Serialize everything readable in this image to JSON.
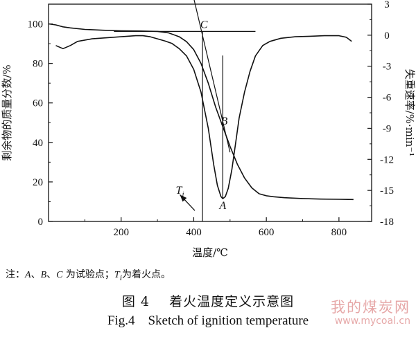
{
  "chart_data": {
    "type": "line",
    "xlabel": "温度/℃",
    "ylabel_left": "剩余物的质量分数/%",
    "ylabel_right": "失重速率/%·min⁻¹",
    "xlim": [
      0,
      890
    ],
    "ylim_left": [
      0,
      110
    ],
    "ylim_right": [
      -18,
      3
    ],
    "x_ticks": [
      200,
      400,
      600,
      800
    ],
    "y_ticks_left": [
      0,
      20,
      40,
      60,
      80,
      100
    ],
    "y_ticks_right": [
      3,
      0,
      -3,
      -6,
      -9,
      -12,
      -15,
      -18
    ],
    "series": [
      {
        "axis": "left",
        "points": [
          [
            0,
            100
          ],
          [
            20,
            99.5
          ],
          [
            40,
            98.5
          ],
          [
            60,
            98
          ],
          [
            100,
            97.2
          ],
          [
            150,
            96.8
          ],
          [
            200,
            96.5
          ],
          [
            250,
            96.4
          ],
          [
            300,
            96.2
          ],
          [
            330,
            95.5
          ],
          [
            360,
            93.5
          ],
          [
            380,
            91
          ],
          [
            400,
            87
          ],
          [
            420,
            80
          ],
          [
            440,
            70
          ],
          [
            460,
            58
          ],
          [
            480,
            48
          ],
          [
            500,
            38
          ],
          [
            520,
            29
          ],
          [
            540,
            22
          ],
          [
            560,
            17
          ],
          [
            580,
            14
          ],
          [
            600,
            13
          ],
          [
            620,
            12.5
          ],
          [
            650,
            12
          ],
          [
            700,
            11.6
          ],
          [
            750,
            11.3
          ],
          [
            800,
            11.2
          ],
          [
            840,
            11.1
          ]
        ]
      },
      {
        "axis": "right",
        "points": [
          [
            20,
            -1
          ],
          [
            40,
            -1.3
          ],
          [
            60,
            -1
          ],
          [
            80,
            -0.6
          ],
          [
            120,
            -0.35
          ],
          [
            160,
            -0.25
          ],
          [
            200,
            -0.15
          ],
          [
            240,
            -0.05
          ],
          [
            260,
            -0.05
          ],
          [
            280,
            -0.15
          ],
          [
            300,
            -0.35
          ],
          [
            320,
            -0.55
          ],
          [
            340,
            -0.8
          ],
          [
            360,
            -1.3
          ],
          [
            380,
            -2
          ],
          [
            400,
            -3.3
          ],
          [
            420,
            -5.5
          ],
          [
            440,
            -9
          ],
          [
            455,
            -12.5
          ],
          [
            465,
            -14.5
          ],
          [
            475,
            -15.6
          ],
          [
            480,
            -15.8
          ],
          [
            487,
            -15.6
          ],
          [
            495,
            -14.8
          ],
          [
            505,
            -13
          ],
          [
            515,
            -10.5
          ],
          [
            525,
            -8
          ],
          [
            540,
            -5.5
          ],
          [
            555,
            -3.5
          ],
          [
            570,
            -2
          ],
          [
            590,
            -1
          ],
          [
            610,
            -0.6
          ],
          [
            640,
            -0.3
          ],
          [
            680,
            -0.15
          ],
          [
            720,
            -0.1
          ],
          [
            760,
            -0.05
          ],
          [
            800,
            -0.05
          ],
          [
            820,
            -0.2
          ],
          [
            835,
            -0.6
          ]
        ]
      }
    ],
    "annotations": [
      {
        "text": "A",
        "x": 480,
        "y_right": -16.8
      },
      {
        "text": "B",
        "x": 484,
        "y_left": 49
      },
      {
        "text": "C",
        "x": 428,
        "y_left": 98
      },
      {
        "text": "T",
        "sub": "i",
        "x": 362,
        "y_left": 14
      }
    ],
    "construction_lines": {
      "horizontal_level_left": 96.2,
      "horizontal_x": [
        180,
        570
      ],
      "tangent_left": [
        [
          400,
          113
        ],
        [
          500,
          35
        ]
      ],
      "ignition_x": 424,
      "peak_x": 480,
      "peak_top_left": 84,
      "arrow_from_left": [
        [
          403,
          5.5
        ],
        [
          362,
          13.5
        ]
      ]
    }
  },
  "note": {
    "prefix": "注：",
    "a": "A",
    "sep1": "、",
    "b": "B",
    "sep2": "、",
    "c": "C",
    "mid": " 为试验点；",
    "t": "T",
    "tsub": "i",
    "suffix": "为着火点。"
  },
  "caption_cn": "图 4    着火温度定义示意图",
  "caption_en": "Fig.4    Sketch of ignition temperature",
  "watermark": {
    "line1": "我的煤炭网",
    "line2": "www.mycoal.cn"
  }
}
